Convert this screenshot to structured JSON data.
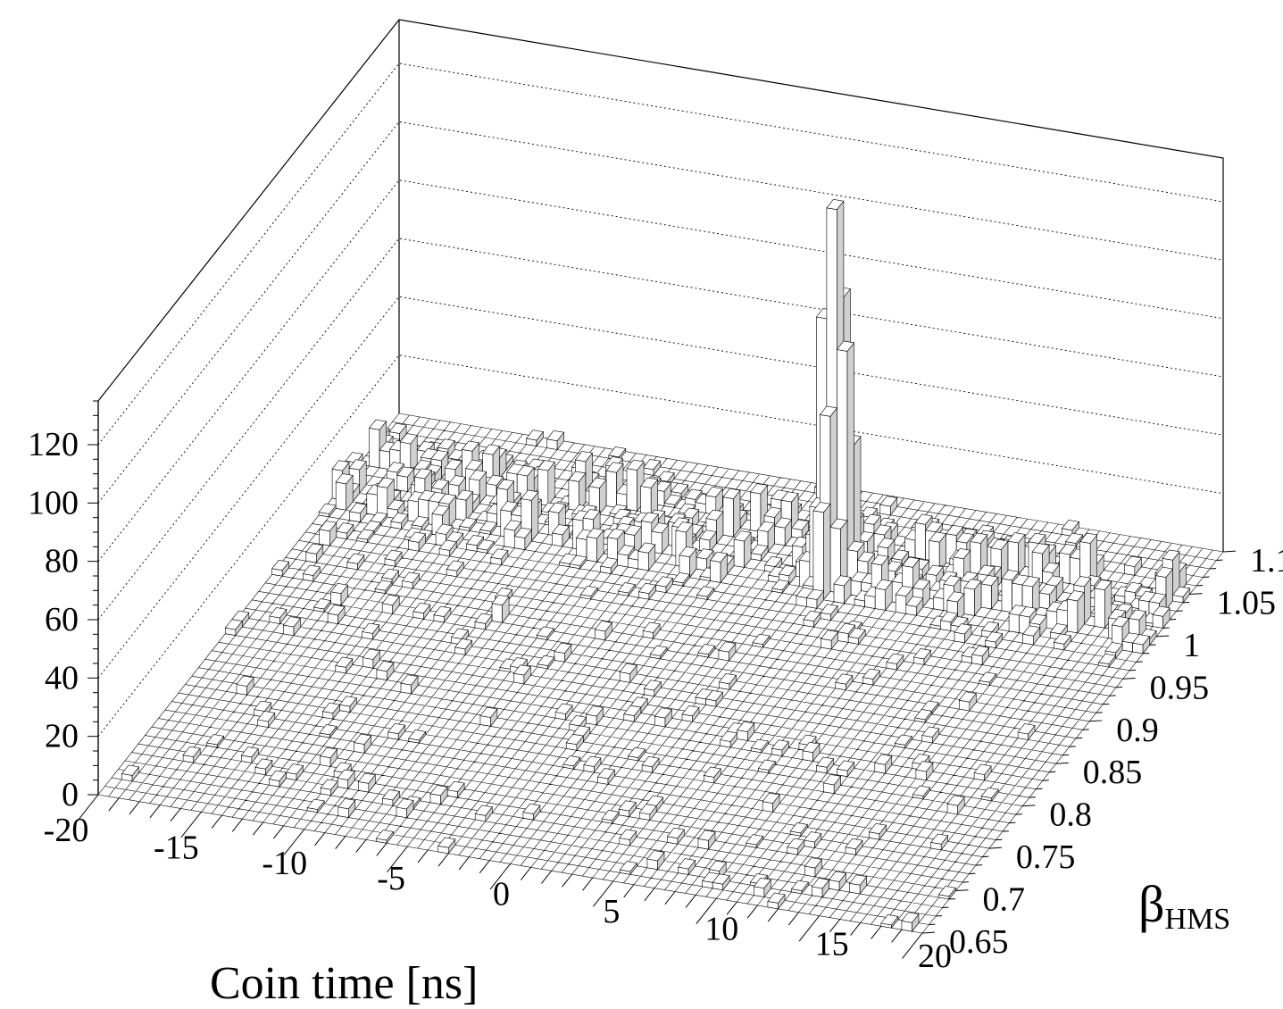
{
  "chart_data": {
    "type": "lego3d",
    "x_axis": {
      "label": "Coin time  [ns]",
      "range": [
        -20,
        20
      ],
      "ticks": [
        "-20",
        "-15",
        "-10",
        "-5",
        "0",
        "5",
        "10",
        "15",
        "20"
      ],
      "tick_values": [
        -20,
        -15,
        -10,
        -5,
        0,
        5,
        10,
        15,
        20
      ],
      "bins": 80
    },
    "y_axis": {
      "label_main": "β",
      "label_sub": "HMS",
      "range": [
        0.65,
        1.1
      ],
      "ticks": [
        "0.65",
        "0.7",
        "0.75",
        "0.8",
        "0.85",
        "0.9",
        "0.95",
        "1",
        "1.05",
        "1.1"
      ],
      "tick_values": [
        0.65,
        0.7,
        0.75,
        0.8,
        0.85,
        0.9,
        0.95,
        1.0,
        1.05,
        1.1
      ],
      "bins": 45
    },
    "z_axis": {
      "label": "",
      "range": [
        0,
        135
      ],
      "ticks": [
        "0",
        "20",
        "40",
        "60",
        "80",
        "100",
        "120"
      ],
      "tick_values": [
        0,
        20,
        40,
        60,
        80,
        100,
        120
      ]
    },
    "grid": true,
    "peak": {
      "x": 4.2,
      "y": 1.02,
      "value": 128
    },
    "prominent_bins": [
      {
        "x": 4.25,
        "y": 1.01,
        "value": 128
      },
      {
        "x": 4.25,
        "y": 1.02,
        "value": 95
      },
      {
        "x": 3.75,
        "y": 1.01,
        "value": 90
      },
      {
        "x": 4.75,
        "y": 1.01,
        "value": 80
      },
      {
        "x": 4.25,
        "y": 1.0,
        "value": 60
      },
      {
        "x": 3.75,
        "y": 1.02,
        "value": 55
      },
      {
        "x": 4.75,
        "y": 1.02,
        "value": 45
      },
      {
        "x": 4.25,
        "y": 0.99,
        "value": 30
      },
      {
        "x": 3.75,
        "y": 1.0,
        "value": 28
      },
      {
        "x": 4.75,
        "y": 1.0,
        "value": 22
      },
      {
        "x": 4.25,
        "y": 1.03,
        "value": 20
      },
      {
        "x": 3.25,
        "y": 1.01,
        "value": 15
      },
      {
        "x": 5.25,
        "y": 1.01,
        "value": 12
      }
    ],
    "bands": [
      {
        "description_y": 1.04,
        "x_range": [
          -20,
          20
        ],
        "typical_value": 8
      },
      {
        "description_y": 1.0,
        "x_range": [
          -20,
          20
        ],
        "typical_value": 8
      }
    ],
    "colors": {
      "box_face": "#ffffff",
      "box_side": "#d0d0d0",
      "line": "#000000"
    }
  }
}
